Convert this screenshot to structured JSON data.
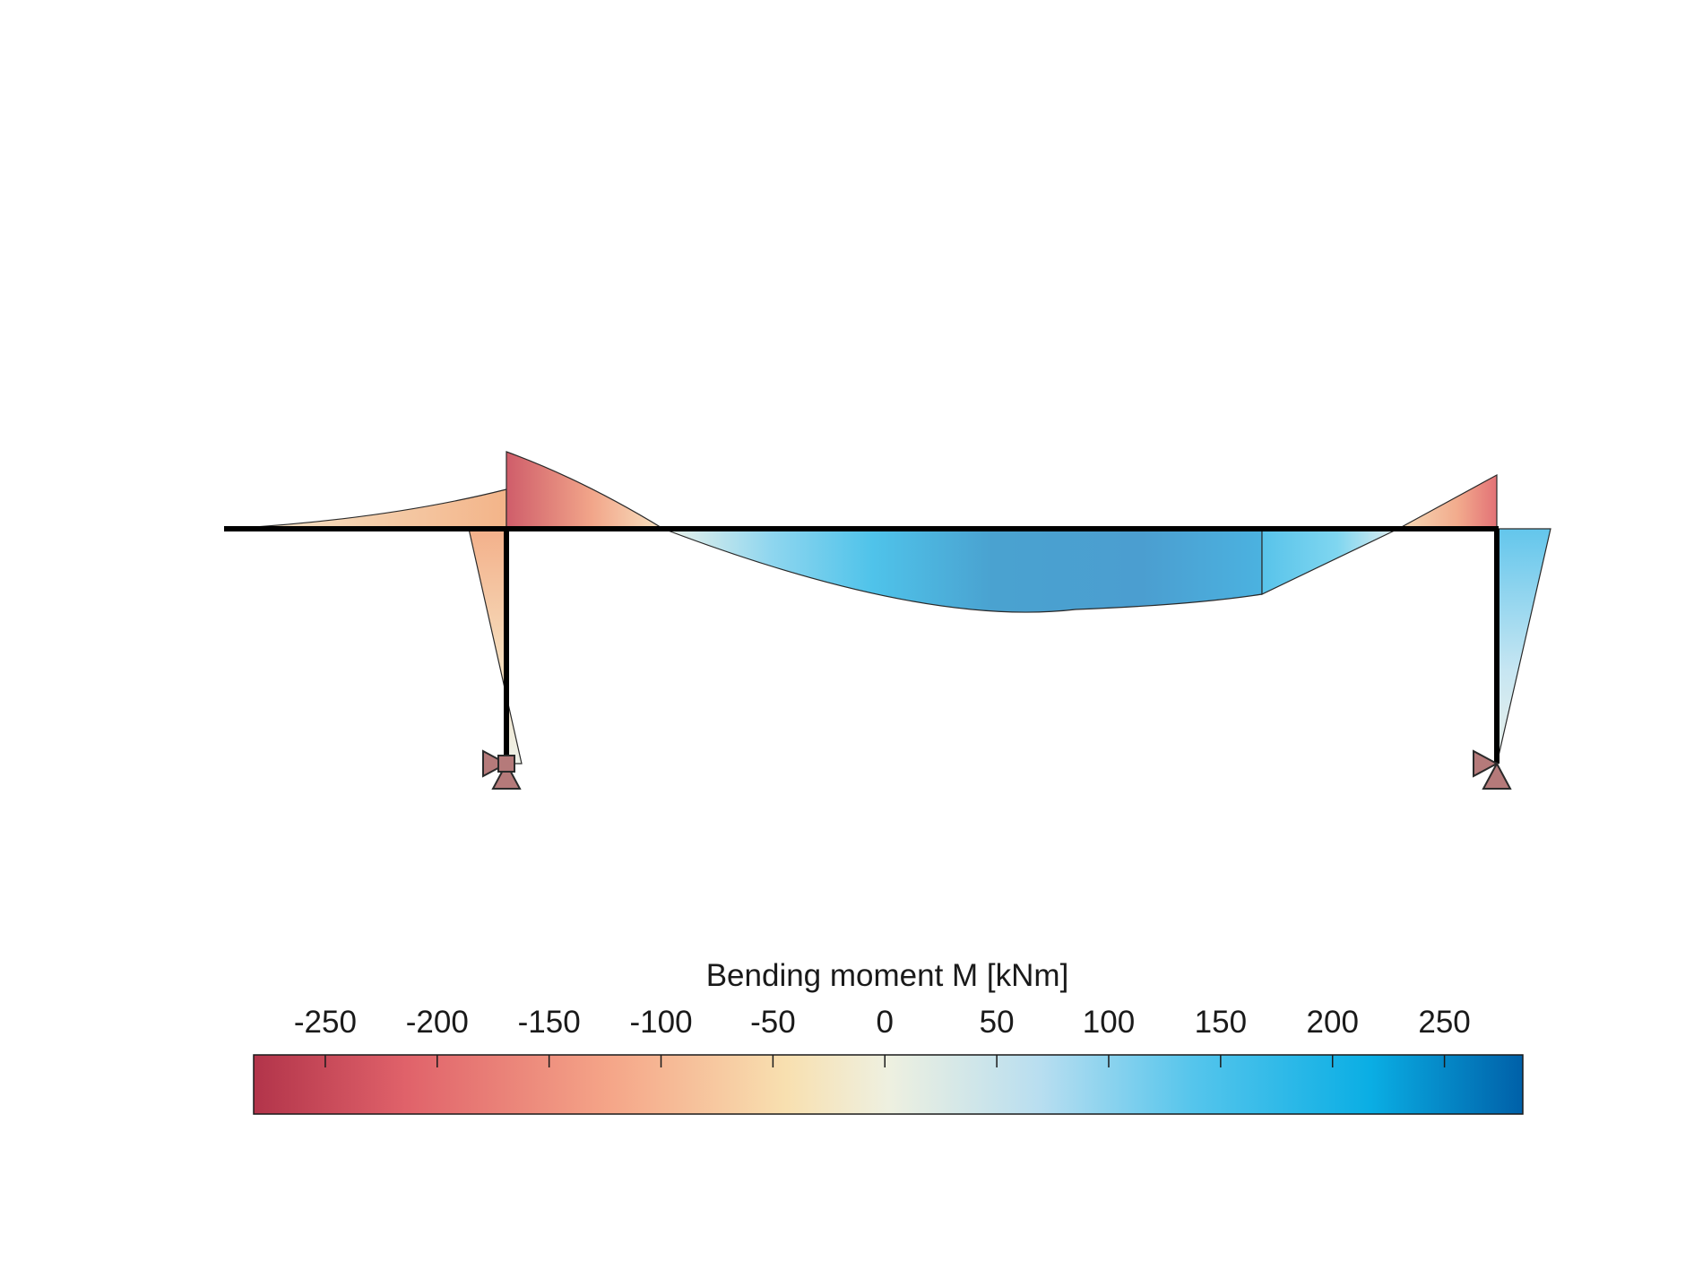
{
  "diagram": {
    "type": "bending-moment-diagram",
    "members": [
      "cantilever-left",
      "beam-main-span",
      "column-left",
      "column-right"
    ],
    "supports": [
      {
        "name": "left-support",
        "kind": "pinned with horizontal restraint"
      },
      {
        "name": "right-support",
        "kind": "pinned with horizontal restraint"
      }
    ],
    "moments_kNm": {
      "cantilever_tip": 0,
      "beam_left_support": -245,
      "beam_right_support": -170,
      "midspan_max": 265,
      "left_column_top": 115,
      "right_column_top": 180
    }
  },
  "colorbar": {
    "title": "Bending moment M [kNm]",
    "range": [
      -282,
      285
    ],
    "ticks": [
      {
        "value": -250,
        "label": "-250"
      },
      {
        "value": -200,
        "label": "-200"
      },
      {
        "value": -150,
        "label": "-150"
      },
      {
        "value": -100,
        "label": "-100"
      },
      {
        "value": -50,
        "label": "-50"
      },
      {
        "value": 0,
        "label": "0"
      },
      {
        "value": 50,
        "label": "50"
      },
      {
        "value": 100,
        "label": "100"
      },
      {
        "value": 150,
        "label": "150"
      },
      {
        "value": 200,
        "label": "200"
      },
      {
        "value": 250,
        "label": "250"
      }
    ],
    "colors": [
      "#b2344a",
      "#e0626a",
      "#f5a588",
      "#f8e0b0",
      "#eef0e0",
      "#b8def0",
      "#55c5ec",
      "#0aaee4",
      "#0060a8"
    ]
  }
}
